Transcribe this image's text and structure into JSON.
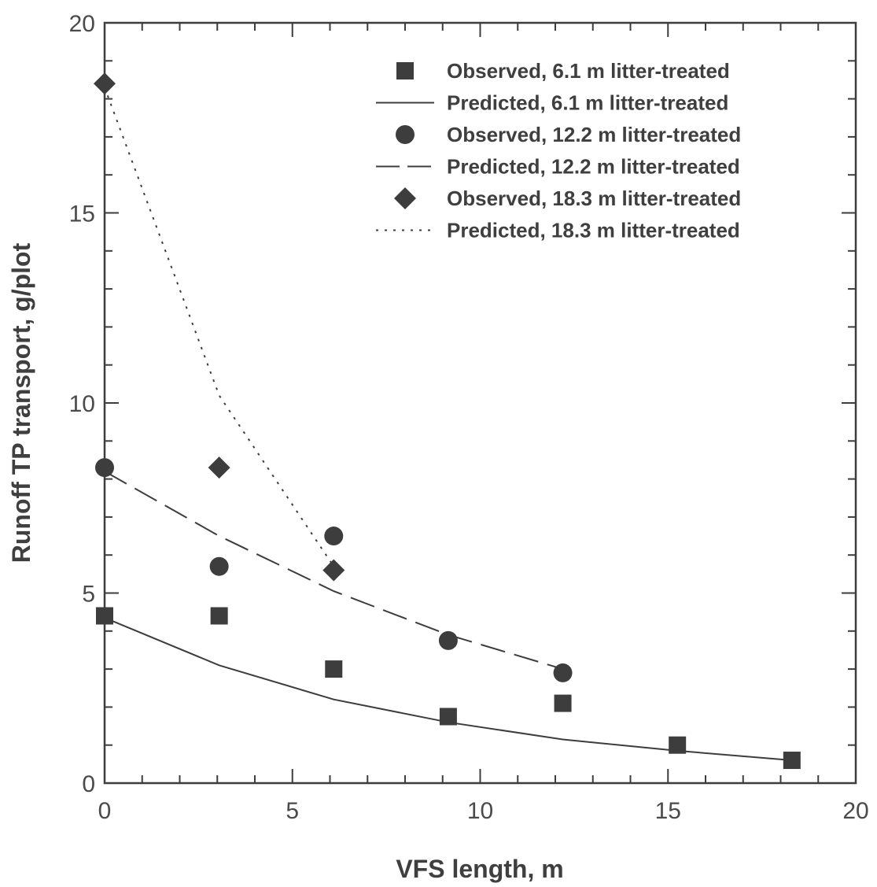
{
  "chart_data": {
    "type": "scatter",
    "title": "",
    "xlabel": "VFS length, m",
    "ylabel": "Runoff TP transport, g/plot",
    "xlim": [
      0,
      20
    ],
    "ylim": [
      0,
      20
    ],
    "x_ticks": [
      0,
      5,
      10,
      15,
      20
    ],
    "y_ticks": [
      0,
      5,
      10,
      15,
      20
    ],
    "grid": false,
    "legend_position": "top-right",
    "series": [
      {
        "name": "Observed, 6.1 m litter-treated",
        "kind": "points",
        "marker": "square",
        "color": "#3d3d3d",
        "x": [
          0,
          3.05,
          6.1,
          9.15,
          12.2,
          15.25,
          18.3
        ],
        "y": [
          4.4,
          4.4,
          3.0,
          1.75,
          2.1,
          1.0,
          0.6
        ]
      },
      {
        "name": "Predicted, 6.1 m litter-treated",
        "kind": "line",
        "dash": "solid",
        "color": "#3d3d3d",
        "x": [
          0,
          3.05,
          6.1,
          9.15,
          12.2,
          15.25,
          18.3
        ],
        "y": [
          4.35,
          3.1,
          2.2,
          1.6,
          1.15,
          0.85,
          0.6
        ]
      },
      {
        "name": "Observed, 12.2 m litter-treated",
        "kind": "points",
        "marker": "circle",
        "color": "#3d3d3d",
        "x": [
          0,
          3.05,
          6.1,
          9.15,
          12.2
        ],
        "y": [
          8.3,
          5.7,
          6.5,
          3.75,
          2.9
        ]
      },
      {
        "name": "Predicted, 12.2 m litter-treated",
        "kind": "line",
        "dash": "long-dash",
        "color": "#3d3d3d",
        "x": [
          0,
          3.05,
          6.1,
          9.15,
          12.2
        ],
        "y": [
          8.2,
          6.5,
          5.05,
          3.9,
          3.0
        ]
      },
      {
        "name": "Observed, 18.3 m litter-treated",
        "kind": "points",
        "marker": "diamond",
        "color": "#3d3d3d",
        "x": [
          0,
          3.05,
          6.1
        ],
        "y": [
          18.4,
          8.3,
          5.6
        ]
      },
      {
        "name": "Predicted, 18.3 m litter-treated",
        "kind": "line",
        "dash": "dotted",
        "color": "#3d3d3d",
        "x": [
          0,
          3.05,
          6.1
        ],
        "y": [
          18.3,
          10.2,
          5.7
        ]
      }
    ]
  }
}
